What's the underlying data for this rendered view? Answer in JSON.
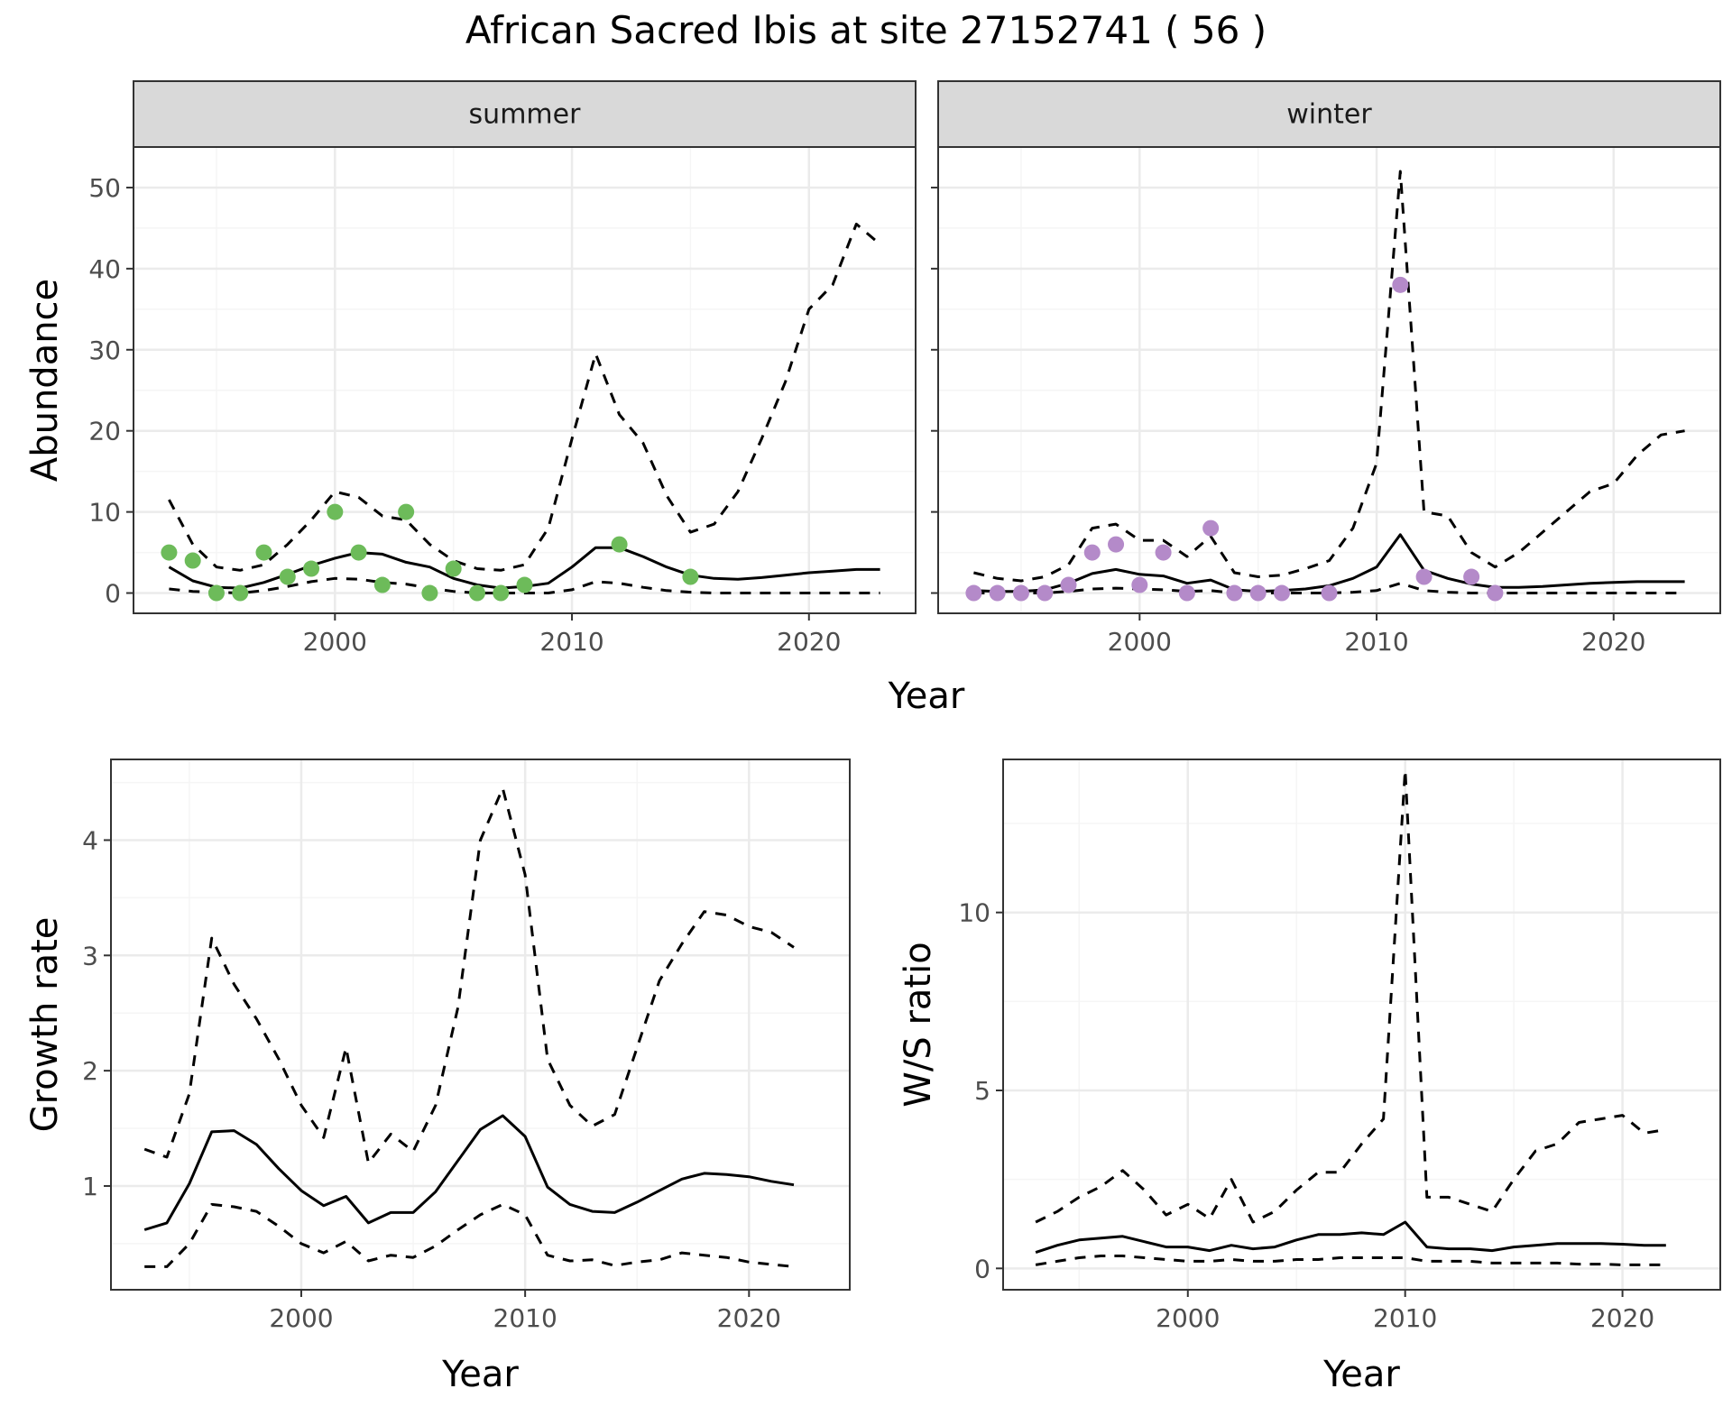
{
  "title": "African Sacred Ibis at site 27152741 ( 56 )",
  "colors": {
    "summer_points": "#6dbb5a",
    "winter_points": "#b48ac9",
    "line": "#000000",
    "grid_major": "#ebebeb",
    "grid_minor": "#f5f5f5",
    "strip_fill": "#d9d9d9",
    "panel_border": "#333333"
  },
  "chart_data": [
    {
      "type": "line",
      "panel": "summer",
      "strip_label": "summer",
      "xlabel": "Year",
      "ylabel": "Abundance",
      "xlim": [
        1991.5,
        2024.5
      ],
      "ylim": [
        -2.5,
        55
      ],
      "x_ticks": [
        2000,
        2010,
        2020
      ],
      "y_ticks": [
        0,
        10,
        20,
        30,
        40,
        50
      ],
      "grid": true,
      "x": [
        1993,
        1994,
        1995,
        1996,
        1997,
        1998,
        1999,
        2000,
        2001,
        2002,
        2003,
        2004,
        2005,
        2006,
        2007,
        2008,
        2009,
        2010,
        2011,
        2012,
        2013,
        2014,
        2015,
        2016,
        2017,
        2018,
        2019,
        2020,
        2021,
        2022,
        2023
      ],
      "series": [
        {
          "style": "dashed",
          "values": [
            11.5,
            6,
            3.2,
            2.8,
            3.5,
            6,
            9,
            12.5,
            11.8,
            9.5,
            9,
            6,
            4,
            3,
            2.8,
            3.5,
            8,
            19,
            29.5,
            22,
            18.5,
            12,
            7.5,
            8.5,
            12.5,
            19,
            26,
            35,
            38,
            45.5,
            43
          ]
        },
        {
          "style": "solid",
          "values": [
            3.2,
            1.5,
            0.7,
            0.6,
            1.3,
            2.3,
            3.4,
            4.3,
            5,
            4.8,
            3.8,
            3.2,
            1.8,
            1,
            0.6,
            0.8,
            1.2,
            3.2,
            5.6,
            5.6,
            4.5,
            3.2,
            2.2,
            1.8,
            1.7,
            1.9,
            2.2,
            2.5,
            2.7,
            2.9,
            2.9
          ]
        },
        {
          "style": "dashed",
          "values": [
            0.5,
            0.2,
            0.1,
            0,
            0.3,
            0.8,
            1.4,
            1.8,
            1.7,
            1.3,
            1.1,
            0.6,
            0.2,
            0,
            0,
            0,
            0,
            0.4,
            1.4,
            1.2,
            0.7,
            0.3,
            0.1,
            0,
            0,
            0,
            0,
            0,
            0,
            0,
            0
          ]
        }
      ],
      "points": {
        "x": [
          1993,
          1994,
          1995,
          1996,
          1997,
          1998,
          1999,
          2000,
          2001,
          2002,
          2003,
          2004,
          2005,
          2006,
          2007,
          2008,
          2012,
          2015
        ],
        "y": [
          5,
          4,
          0,
          0,
          5,
          2,
          3,
          10,
          5,
          1,
          10,
          0,
          3,
          0,
          0,
          1,
          6,
          2
        ]
      }
    },
    {
      "type": "line",
      "panel": "winter",
      "strip_label": "winter",
      "xlabel": "Year",
      "ylabel": "Abundance",
      "xlim": [
        1991.5,
        2024.5
      ],
      "ylim": [
        -2.5,
        55
      ],
      "x_ticks": [
        2000,
        2010,
        2020
      ],
      "y_ticks": [
        0,
        10,
        20,
        30,
        40,
        50
      ],
      "grid": true,
      "x": [
        1993,
        1994,
        1995,
        1996,
        1997,
        1998,
        1999,
        2000,
        2001,
        2002,
        2003,
        2004,
        2005,
        2006,
        2007,
        2008,
        2009,
        2010,
        2011,
        2012,
        2013,
        2014,
        2015,
        2016,
        2017,
        2018,
        2019,
        2020,
        2021,
        2022,
        2023
      ],
      "series": [
        {
          "style": "dashed",
          "values": [
            2.5,
            1.8,
            1.5,
            2,
            3.5,
            8,
            8.5,
            6.5,
            6.5,
            4.5,
            7,
            2.5,
            2,
            2.2,
            3,
            4,
            8,
            16,
            52,
            10,
            9.5,
            5,
            3.2,
            5,
            7.5,
            10,
            12.5,
            13.5,
            17,
            19.5,
            20
          ]
        },
        {
          "style": "solid",
          "values": [
            0.3,
            0.2,
            0.2,
            0.4,
            1.2,
            2.4,
            2.9,
            2.3,
            2.1,
            1.2,
            1.6,
            0.4,
            0.2,
            0.3,
            0.5,
            0.9,
            1.8,
            3.2,
            7.2,
            2.8,
            1.8,
            1.1,
            0.7,
            0.7,
            0.8,
            1,
            1.2,
            1.3,
            1.4,
            1.4,
            1.4
          ]
        },
        {
          "style": "dashed",
          "values": [
            0,
            0,
            0,
            0,
            0.2,
            0.5,
            0.6,
            0.5,
            0.4,
            0.2,
            0.3,
            0,
            0,
            0,
            0,
            0,
            0.1,
            0.3,
            1.2,
            0.3,
            0.1,
            0,
            0,
            0,
            0,
            0,
            0,
            0,
            0,
            0,
            0
          ]
        }
      ],
      "points": {
        "x": [
          1993,
          1994,
          1995,
          1996,
          1997,
          1998,
          1999,
          2000,
          2001,
          2002,
          2003,
          2004,
          2005,
          2006,
          2008,
          2011,
          2012,
          2014,
          2015
        ],
        "y": [
          0,
          0,
          0,
          0,
          1,
          5,
          6,
          1,
          5,
          0,
          8,
          0,
          0,
          0,
          0,
          38,
          2,
          2,
          0
        ]
      }
    },
    {
      "type": "line",
      "panel": "growth",
      "xlabel": "Year",
      "ylabel": "Growth rate",
      "xlim": [
        1991.5,
        2024.5
      ],
      "ylim": [
        0.1,
        4.7
      ],
      "x_ticks": [
        2000,
        2010,
        2020
      ],
      "y_ticks": [
        1,
        2,
        3,
        4
      ],
      "grid": true,
      "x": [
        1993,
        1994,
        1995,
        1996,
        1997,
        1998,
        1999,
        2000,
        2001,
        2002,
        2003,
        2004,
        2005,
        2006,
        2007,
        2008,
        2009,
        2010,
        2011,
        2012,
        2013,
        2014,
        2015,
        2016,
        2017,
        2018,
        2019,
        2020,
        2021,
        2022
      ],
      "series": [
        {
          "style": "dashed",
          "values": [
            1.32,
            1.25,
            1.8,
            3.15,
            2.75,
            2.45,
            2.1,
            1.7,
            1.42,
            2.2,
            1.2,
            1.45,
            1.3,
            1.7,
            2.55,
            4,
            4.45,
            3.7,
            2.1,
            1.7,
            1.52,
            1.62,
            2.2,
            2.78,
            3.1,
            3.38,
            3.35,
            3.25,
            3.2,
            3.07
          ]
        },
        {
          "style": "solid",
          "values": [
            0.62,
            0.68,
            1.02,
            1.47,
            1.48,
            1.36,
            1.15,
            0.96,
            0.83,
            0.91,
            0.68,
            0.77,
            0.77,
            0.95,
            1.22,
            1.49,
            1.61,
            1.43,
            0.99,
            0.84,
            0.78,
            0.77,
            0.86,
            0.96,
            1.06,
            1.11,
            1.1,
            1.08,
            1.04,
            1.01
          ]
        },
        {
          "style": "dashed",
          "values": [
            0.3,
            0.3,
            0.5,
            0.84,
            0.82,
            0.78,
            0.65,
            0.5,
            0.42,
            0.52,
            0.35,
            0.4,
            0.38,
            0.48,
            0.62,
            0.75,
            0.84,
            0.75,
            0.4,
            0.35,
            0.36,
            0.31,
            0.34,
            0.36,
            0.42,
            0.4,
            0.38,
            0.34,
            0.32,
            0.3
          ]
        }
      ]
    },
    {
      "type": "line",
      "panel": "ratio",
      "xlabel": "Year",
      "ylabel": "W/S ratio",
      "xlim": [
        1991.5,
        2024.5
      ],
      "ylim": [
        -0.6,
        14.3
      ],
      "x_ticks": [
        2000,
        2010,
        2020
      ],
      "y_ticks": [
        0,
        5,
        10
      ],
      "grid": true,
      "x": [
        1993,
        1994,
        1995,
        1996,
        1997,
        1998,
        1999,
        2000,
        2001,
        2002,
        2003,
        2004,
        2005,
        2006,
        2007,
        2008,
        2009,
        2010,
        2011,
        2012,
        2013,
        2014,
        2015,
        2016,
        2017,
        2018,
        2019,
        2020,
        2021,
        2022
      ],
      "series": [
        {
          "style": "dashed",
          "values": [
            1.3,
            1.6,
            2,
            2.3,
            2.75,
            2.2,
            1.5,
            1.8,
            1.4,
            2.5,
            1.3,
            1.6,
            2.2,
            2.7,
            2.7,
            3.5,
            4.2,
            14,
            2,
            2,
            1.8,
            1.6,
            2.5,
            3.3,
            3.5,
            4.1,
            4.2,
            4.3,
            3.8,
            3.9
          ]
        },
        {
          "style": "solid",
          "values": [
            0.45,
            0.65,
            0.8,
            0.85,
            0.9,
            0.75,
            0.6,
            0.6,
            0.5,
            0.65,
            0.55,
            0.6,
            0.8,
            0.95,
            0.95,
            1,
            0.95,
            1.3,
            0.6,
            0.55,
            0.55,
            0.5,
            0.6,
            0.65,
            0.7,
            0.7,
            0.7,
            0.68,
            0.65,
            0.65
          ]
        },
        {
          "style": "dashed",
          "values": [
            0.1,
            0.2,
            0.3,
            0.35,
            0.35,
            0.3,
            0.25,
            0.2,
            0.2,
            0.25,
            0.2,
            0.2,
            0.25,
            0.25,
            0.3,
            0.3,
            0.3,
            0.3,
            0.2,
            0.2,
            0.2,
            0.15,
            0.15,
            0.15,
            0.15,
            0.12,
            0.12,
            0.1,
            0.1,
            0.1
          ]
        }
      ]
    }
  ]
}
